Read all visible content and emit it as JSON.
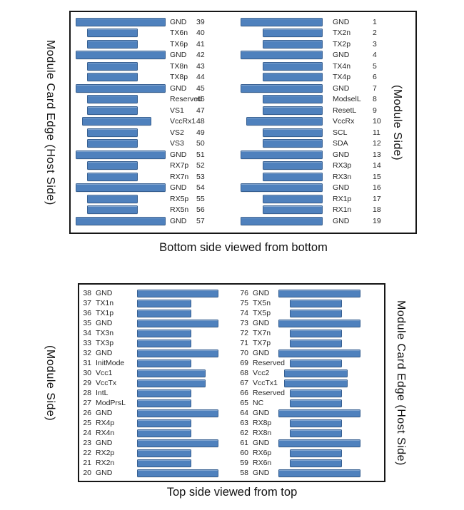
{
  "colors": {
    "bar_fill": "#4f81bd",
    "bar_border": "#365f91",
    "panel_border": "#161616",
    "text": "#262626",
    "caption_text": "#111111"
  },
  "panels": [
    {
      "id": "bottom-side",
      "caption": "Bottom side viewed from bottom",
      "side_labels": {
        "left": "Module Card Edge (Host Side)",
        "right": "(Module Side)"
      },
      "labels_first": false,
      "columns": [
        {
          "pins": [
            {
              "num": 39,
              "name": "GND",
              "size": "long"
            },
            {
              "num": 40,
              "name": "TX6n",
              "size": "short"
            },
            {
              "num": 41,
              "name": "TX6p",
              "size": "short"
            },
            {
              "num": 42,
              "name": "GND",
              "size": "long"
            },
            {
              "num": 43,
              "name": "TX8n",
              "size": "short"
            },
            {
              "num": 44,
              "name": "TX8p",
              "size": "short"
            },
            {
              "num": 45,
              "name": "GND",
              "size": "long"
            },
            {
              "num": 46,
              "name": "Reserved",
              "size": "short"
            },
            {
              "num": 47,
              "name": "VS1",
              "size": "short"
            },
            {
              "num": 48,
              "name": "VccRx1",
              "size": "med"
            },
            {
              "num": 49,
              "name": "VS2",
              "size": "short"
            },
            {
              "num": 50,
              "name": "VS3",
              "size": "short"
            },
            {
              "num": 51,
              "name": "GND",
              "size": "long"
            },
            {
              "num": 52,
              "name": "RX7p",
              "size": "short"
            },
            {
              "num": 53,
              "name": "RX7n",
              "size": "short"
            },
            {
              "num": 54,
              "name": "GND",
              "size": "long"
            },
            {
              "num": 55,
              "name": "RX5p",
              "size": "short"
            },
            {
              "num": 56,
              "name": "RX5n",
              "size": "short"
            },
            {
              "num": 57,
              "name": "GND",
              "size": "long"
            }
          ]
        },
        {
          "pins": [
            {
              "num": 1,
              "name": "GND",
              "size": "long"
            },
            {
              "num": 2,
              "name": "TX2n",
              "size": "short"
            },
            {
              "num": 3,
              "name": "TX2p",
              "size": "short"
            },
            {
              "num": 4,
              "name": "GND",
              "size": "long"
            },
            {
              "num": 5,
              "name": "TX4n",
              "size": "short"
            },
            {
              "num": 6,
              "name": "TX4p",
              "size": "short"
            },
            {
              "num": 7,
              "name": "GND",
              "size": "long"
            },
            {
              "num": 8,
              "name": "ModselL",
              "size": "short"
            },
            {
              "num": 9,
              "name": "ResetL",
              "size": "short"
            },
            {
              "num": 10,
              "name": "VccRx",
              "size": "med"
            },
            {
              "num": 11,
              "name": "SCL",
              "size": "short"
            },
            {
              "num": 12,
              "name": "SDA",
              "size": "short"
            },
            {
              "num": 13,
              "name": "GND",
              "size": "long"
            },
            {
              "num": 14,
              "name": "RX3p",
              "size": "short"
            },
            {
              "num": 15,
              "name": "RX3n",
              "size": "short"
            },
            {
              "num": 16,
              "name": "GND",
              "size": "long"
            },
            {
              "num": 17,
              "name": "RX1p",
              "size": "short"
            },
            {
              "num": 18,
              "name": "RX1n",
              "size": "short"
            },
            {
              "num": 19,
              "name": "GND",
              "size": "long"
            }
          ]
        }
      ]
    },
    {
      "id": "top-side",
      "caption": "Top side viewed from top",
      "side_labels": {
        "left": "(Module Side)",
        "right": "Module Card Edge (Host Side)"
      },
      "labels_first": true,
      "columns": [
        {
          "pins": [
            {
              "num": 38,
              "name": "GND",
              "size": "long"
            },
            {
              "num": 37,
              "name": "TX1n",
              "size": "short"
            },
            {
              "num": 36,
              "name": "TX1p",
              "size": "short"
            },
            {
              "num": 35,
              "name": "GND",
              "size": "long"
            },
            {
              "num": 34,
              "name": "TX3n",
              "size": "short"
            },
            {
              "num": 33,
              "name": "TX3p",
              "size": "short"
            },
            {
              "num": 32,
              "name": "GND",
              "size": "long"
            },
            {
              "num": 31,
              "name": "InitMode",
              "size": "short"
            },
            {
              "num": 30,
              "name": "Vcc1",
              "size": "med"
            },
            {
              "num": 29,
              "name": "VccTx",
              "size": "med"
            },
            {
              "num": 28,
              "name": "IntL",
              "size": "short"
            },
            {
              "num": 27,
              "name": "ModPrsL",
              "size": "short"
            },
            {
              "num": 26,
              "name": "GND",
              "size": "long"
            },
            {
              "num": 25,
              "name": "RX4p",
              "size": "short"
            },
            {
              "num": 24,
              "name": "RX4n",
              "size": "short"
            },
            {
              "num": 23,
              "name": "GND",
              "size": "long"
            },
            {
              "num": 22,
              "name": "RX2p",
              "size": "short"
            },
            {
              "num": 21,
              "name": "RX2n",
              "size": "short"
            },
            {
              "num": 20,
              "name": "GND",
              "size": "long"
            }
          ]
        },
        {
          "pins": [
            {
              "num": 76,
              "name": "GND",
              "size": "long"
            },
            {
              "num": 75,
              "name": "TX5n",
              "size": "short"
            },
            {
              "num": 74,
              "name": "TX5p",
              "size": "short"
            },
            {
              "num": 73,
              "name": "GND",
              "size": "long"
            },
            {
              "num": 72,
              "name": "TX7n",
              "size": "short"
            },
            {
              "num": 71,
              "name": "TX7p",
              "size": "short"
            },
            {
              "num": 70,
              "name": "GND",
              "size": "long"
            },
            {
              "num": 69,
              "name": "Reserved",
              "size": "short"
            },
            {
              "num": 68,
              "name": "Vcc2",
              "size": "med"
            },
            {
              "num": 67,
              "name": "VccTx1",
              "size": "med"
            },
            {
              "num": 66,
              "name": "Reserved",
              "size": "short"
            },
            {
              "num": 65,
              "name": "NC",
              "size": "short"
            },
            {
              "num": 64,
              "name": "GND",
              "size": "long"
            },
            {
              "num": 63,
              "name": "RX8p",
              "size": "short"
            },
            {
              "num": 62,
              "name": "RX8n",
              "size": "short"
            },
            {
              "num": 61,
              "name": "GND",
              "size": "long"
            },
            {
              "num": 60,
              "name": "RX6p",
              "size": "short"
            },
            {
              "num": 59,
              "name": "RX6n",
              "size": "short"
            },
            {
              "num": 58,
              "name": "GND",
              "size": "long"
            }
          ]
        }
      ]
    }
  ]
}
